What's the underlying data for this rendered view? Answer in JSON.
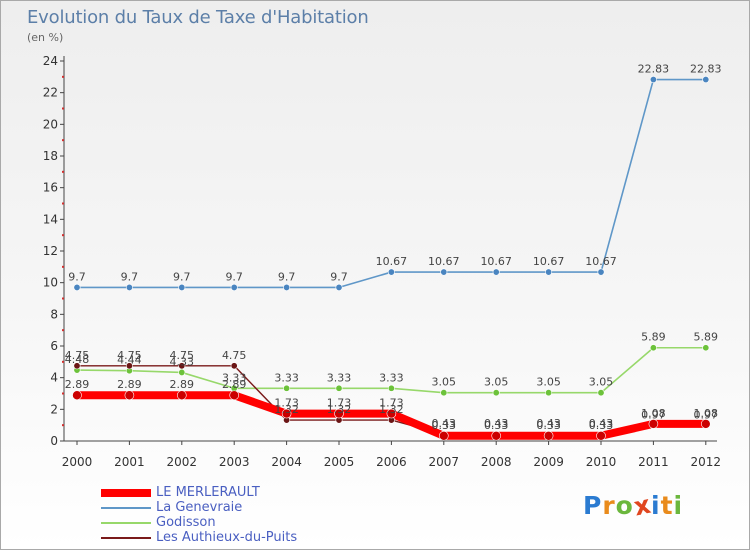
{
  "header": {
    "title": "Evolution du Taux de Taxe d'Habitation",
    "unit": "(en %)"
  },
  "logo": {
    "text": "Proxiti",
    "letter_colors": [
      "#2b7bd1",
      "#e98b1c",
      "#6bb73d",
      "#e0461f",
      "#2b7bd1",
      "#e98b1c",
      "#6bb73d"
    ]
  },
  "chart_data": {
    "type": "line",
    "title": "Evolution du Taux de Taxe d'Habitation",
    "ylabel": "(en %)",
    "xlabel": "",
    "x": [
      "2000",
      "2001",
      "2002",
      "2003",
      "2004",
      "2005",
      "2006",
      "2007",
      "2008",
      "2009",
      "2010",
      "2011",
      "2012"
    ],
    "ylim": [
      0,
      24
    ],
    "yticks": [
      0,
      2,
      4,
      6,
      8,
      10,
      12,
      14,
      16,
      18,
      20,
      22,
      24
    ],
    "grid": false,
    "legend_position": "bottom-left",
    "series": [
      {
        "name": "LE MERLERAULT",
        "color": "#ff0000",
        "marker_color": "#cc0000",
        "values": [
          2.89,
          2.89,
          2.89,
          2.89,
          1.73,
          1.73,
          1.73,
          0.33,
          0.33,
          0.33,
          0.33,
          1.08,
          1.08
        ],
        "labels": [
          "2.89",
          "2.89",
          "2.89",
          "2.89",
          "1.73",
          "1.73",
          "1.73",
          "0.33",
          "0.33",
          "0.33",
          "0.33",
          "1.08",
          "1.08"
        ]
      },
      {
        "name": "La Genevraie",
        "color": "#5f97c8",
        "marker_color": "#4a85c0",
        "values": [
          9.7,
          9.7,
          9.7,
          9.7,
          9.7,
          9.7,
          10.67,
          10.67,
          10.67,
          10.67,
          10.67,
          22.83,
          22.83
        ],
        "labels": [
          "9.7",
          "9.7",
          "9.7",
          "9.7",
          "9.7",
          "9.7",
          "10.67",
          "10.67",
          "10.67",
          "10.67",
          "10.67",
          "22.83",
          "22.83"
        ]
      },
      {
        "name": "Godisson",
        "color": "#97d86a",
        "marker_color": "#6cc23a",
        "values": [
          4.48,
          4.44,
          4.33,
          3.33,
          3.33,
          3.33,
          3.33,
          3.05,
          3.05,
          3.05,
          3.05,
          5.89,
          5.89
        ],
        "labels": [
          "4.48",
          "4.44",
          "4.33",
          "3.33",
          "3.33",
          "3.33",
          "3.33",
          "3.05",
          "3.05",
          "3.05",
          "3.05",
          "5.89",
          "5.89"
        ]
      },
      {
        "name": "Les Authieux-du-Puits",
        "color": "#7a1a1a",
        "marker_color": "#6b1515",
        "values": [
          4.75,
          4.75,
          4.75,
          4.75,
          1.32,
          1.32,
          1.32,
          0.43,
          0.43,
          0.43,
          0.43,
          0.97,
          0.97
        ],
        "labels": [
          "4.75",
          "4.75",
          "4.75",
          "4.75",
          "1.32",
          "1.32",
          "1.32",
          "0.43",
          "0.43",
          "0.43",
          "0.43",
          "0.97",
          "0.97"
        ]
      }
    ]
  }
}
